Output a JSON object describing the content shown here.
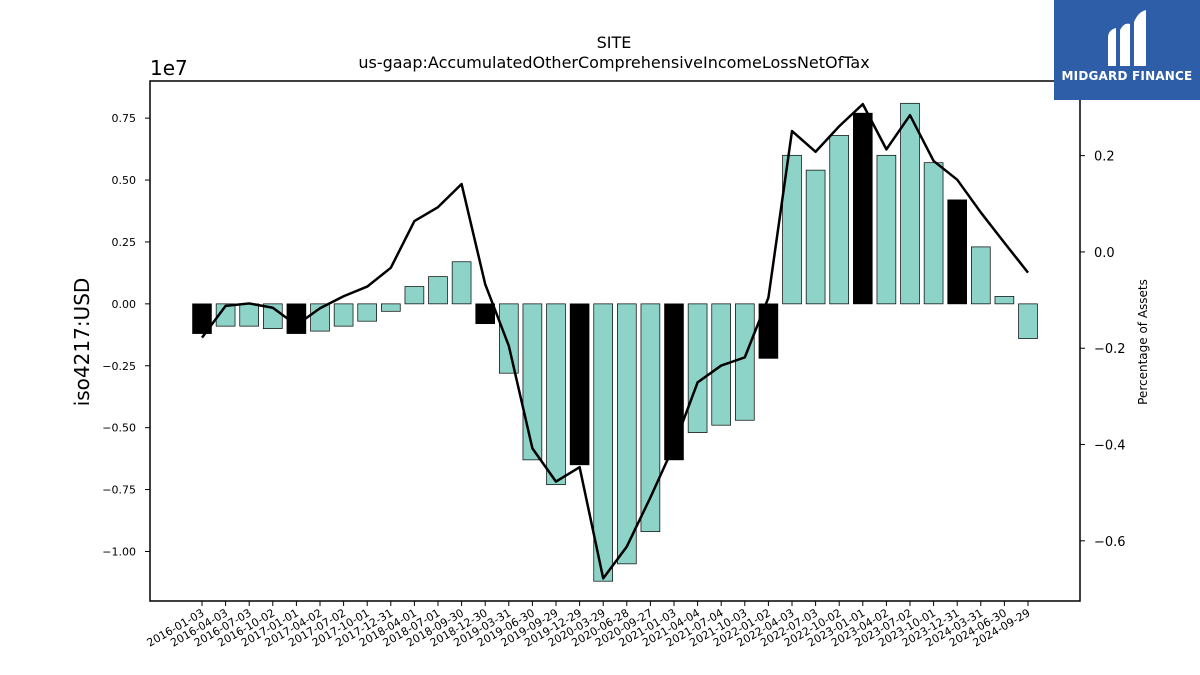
{
  "chart_data": {
    "type": "bar",
    "title": "SITE",
    "subtitle": "us-gaap:AccumulatedOtherComprehensiveIncomeLossNetOfTax",
    "ylabel": "iso4217:USD",
    "y2label": "Percentage of Assets",
    "y_scale_label": "1e7",
    "ylim": [
      -12000000.0,
      9000000.0
    ],
    "y2lim": [
      -0.725,
      0.355
    ],
    "yticks": [
      -10000000.0,
      -7500000.0,
      -5000000.0,
      -2500000.0,
      0,
      2500000.0,
      5000000.0,
      7500000.0
    ],
    "ytick_labels": [
      "−1.00",
      "−0.75",
      "−0.50",
      "−0.25",
      "0.00",
      "0.25",
      "0.50",
      "0.75"
    ],
    "y2ticks": [
      -0.6,
      -0.4,
      -0.2,
      0.0,
      0.2
    ],
    "y2tick_labels": [
      "−0.6",
      "−0.4",
      "−0.2",
      "0.0",
      "0.2"
    ],
    "categories": [
      "2016-01-03",
      "2016-04-03",
      "2016-07-03",
      "2016-10-02",
      "2017-01-01",
      "2017-04-02",
      "2017-07-02",
      "2017-10-01",
      "2017-12-31",
      "2018-04-01",
      "2018-07-01",
      "2018-09-30",
      "2018-12-30",
      "2019-03-31",
      "2019-06-30",
      "2019-09-29",
      "2019-12-29",
      "2020-03-29",
      "2020-06-28",
      "2020-09-27",
      "2021-01-03",
      "2021-04-04",
      "2021-07-04",
      "2021-10-03",
      "2022-01-02",
      "2022-04-03",
      "2022-07-03",
      "2022-10-02",
      "2023-01-01",
      "2023-04-02",
      "2023-07-02",
      "2023-10-01",
      "2023-12-31",
      "2024-03-31",
      "2024-06-30",
      "2024-09-29"
    ],
    "series": [
      {
        "type": "bar",
        "values": [
          -1200000,
          -900000,
          -900000,
          -1000000,
          -1200000,
          -1100000,
          -900000,
          -700000,
          -300000,
          700000,
          1100000,
          1700000,
          -800000,
          -2800000,
          -6300000,
          -7300000,
          -6500000,
          -11200000,
          -10500000,
          -9200000,
          -6300000,
          -5200000,
          -4900000,
          -4700000,
          -2200000,
          6000000,
          5400000,
          6800000,
          7700000,
          6000000,
          8100000,
          5700000,
          4200000,
          2300000,
          300000,
          -1400000
        ],
        "fiscal_year_end": [
          true,
          false,
          false,
          false,
          true,
          false,
          false,
          false,
          false,
          false,
          false,
          false,
          true,
          false,
          false,
          false,
          true,
          false,
          false,
          false,
          true,
          false,
          false,
          false,
          true,
          false,
          false,
          false,
          true,
          false,
          false,
          false,
          true,
          false,
          false,
          false
        ],
        "color": "#8dd3c7",
        "highlight_color": "#000000"
      },
      {
        "type": "line",
        "axis": "right",
        "values": [
          -0.178,
          -0.112,
          -0.107,
          -0.116,
          -0.152,
          -0.117,
          -0.092,
          -0.072,
          -0.033,
          0.064,
          0.093,
          0.141,
          -0.067,
          -0.195,
          -0.408,
          -0.477,
          -0.447,
          -0.678,
          -0.612,
          -0.51,
          -0.402,
          -0.271,
          -0.236,
          -0.219,
          -0.095,
          0.251,
          0.208,
          0.261,
          0.307,
          0.213,
          0.284,
          0.189,
          0.15,
          0.082,
          0.019,
          -0.043
        ],
        "color": "#000000"
      }
    ],
    "grid": false
  },
  "logo": {
    "text": "MIDGARD FINANCE",
    "color": "#2f5ea8"
  }
}
